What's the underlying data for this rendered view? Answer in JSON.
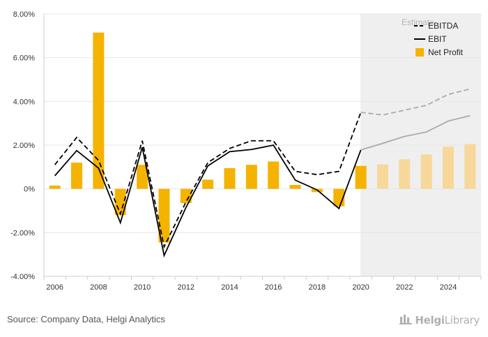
{
  "chart_data": {
    "type": "bar",
    "categories": [
      "2006",
      "2007",
      "2008",
      "2009",
      "2010",
      "2011",
      "2012",
      "2013",
      "2014",
      "2015",
      "2016",
      "2017",
      "2018",
      "2019",
      "2020",
      "2021",
      "2022",
      "2023",
      "2024",
      "2025"
    ],
    "x_tick_labels": [
      "2006",
      "2008",
      "2010",
      "2012",
      "2014",
      "2016",
      "2018",
      "2020",
      "2022",
      "2024"
    ],
    "ylim": [
      -4,
      8
    ],
    "yticks": [
      -4,
      -2,
      0,
      2,
      4,
      6,
      8
    ],
    "ytick_labels": [
      "-4.00%",
      "-2.00%",
      "0%",
      "2.00%",
      "4.00%",
      "6.00%",
      "8.00%"
    ],
    "grid": true,
    "legend_position": "top-right",
    "estimate_label": "Estimate",
    "estimate_from": "2020",
    "series": [
      {
        "name": "EBITDA",
        "type": "line",
        "style": "dashed",
        "values": [
          1.1,
          2.35,
          1.3,
          -1.15,
          2.2,
          -2.65,
          -0.6,
          1.2,
          1.85,
          2.2,
          2.2,
          0.8,
          0.65,
          0.8,
          3.5,
          3.38,
          3.6,
          3.82,
          4.32,
          4.57
        ]
      },
      {
        "name": "EBIT",
        "type": "line",
        "style": "solid",
        "values": [
          0.6,
          1.75,
          0.95,
          -1.55,
          1.9,
          -3.05,
          -0.85,
          1.05,
          1.7,
          1.8,
          2.0,
          0.4,
          -0.05,
          -0.9,
          1.78,
          2.08,
          2.4,
          2.6,
          3.1,
          3.35
        ]
      },
      {
        "name": "Net Profit",
        "type": "bar",
        "values": [
          0.15,
          1.2,
          7.15,
          -1.2,
          1.1,
          -2.45,
          -0.65,
          0.42,
          0.95,
          1.1,
          1.25,
          0.18,
          -0.15,
          -0.8,
          1.05,
          1.12,
          1.35,
          1.57,
          1.93,
          2.05
        ]
      }
    ],
    "colors": {
      "bar": "#f5b301",
      "bar_estimate": "#f7d89a",
      "line": "#000000",
      "line_estimate": "#aaaaaa",
      "estimate_band": "#efefef",
      "grid": "#e6e6e6",
      "axis_text": "#333333"
    }
  },
  "footer": {
    "source": "Source: Company Data, Helgi Analytics",
    "brand_bold": "Helgi",
    "brand_thin": "Library"
  }
}
